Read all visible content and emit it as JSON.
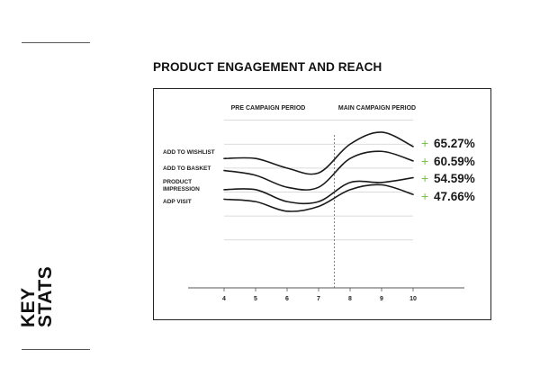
{
  "sidebar": {
    "title_line1": "KEY",
    "title_line2": "STATS"
  },
  "heading": "PRODUCT ENGAGEMENT AND REACH",
  "colors": {
    "accent": "#7bbf4e",
    "line": "#1a1a1a",
    "grid": "#cfcfcf",
    "axis": "#555555"
  },
  "chart_data": {
    "type": "line",
    "title": "",
    "period_labels": [
      "PRE CAMPAIGN PERIOD",
      "MAIN CAMPAIGN PERIOD"
    ],
    "period_boundary_x": 7.5,
    "x": [
      4,
      5,
      6,
      7,
      8,
      9,
      10
    ],
    "xticks": [
      "4",
      "5",
      "6",
      "7",
      "8",
      "9",
      "10"
    ],
    "xlim": [
      3,
      11
    ],
    "ylim": [
      0,
      80
    ],
    "y_visible": false,
    "grid": true,
    "series": [
      {
        "name": "ADD TO WISHLIST",
        "values": [
          54,
          54,
          50,
          48,
          60,
          65,
          59
        ],
        "change": "65.27%"
      },
      {
        "name": "ADD TO BASKET",
        "values": [
          49,
          47,
          42,
          42,
          54,
          57,
          53
        ],
        "change": "60.59%"
      },
      {
        "name": "PRODUCT IMPRESSION",
        "values": [
          41,
          41,
          36,
          36,
          44,
          44,
          46
        ],
        "change": "54.59%"
      },
      {
        "name": "ADP VISIT",
        "values": [
          37,
          36,
          32,
          34,
          41,
          43,
          39
        ],
        "change": "47.66%"
      }
    ]
  }
}
